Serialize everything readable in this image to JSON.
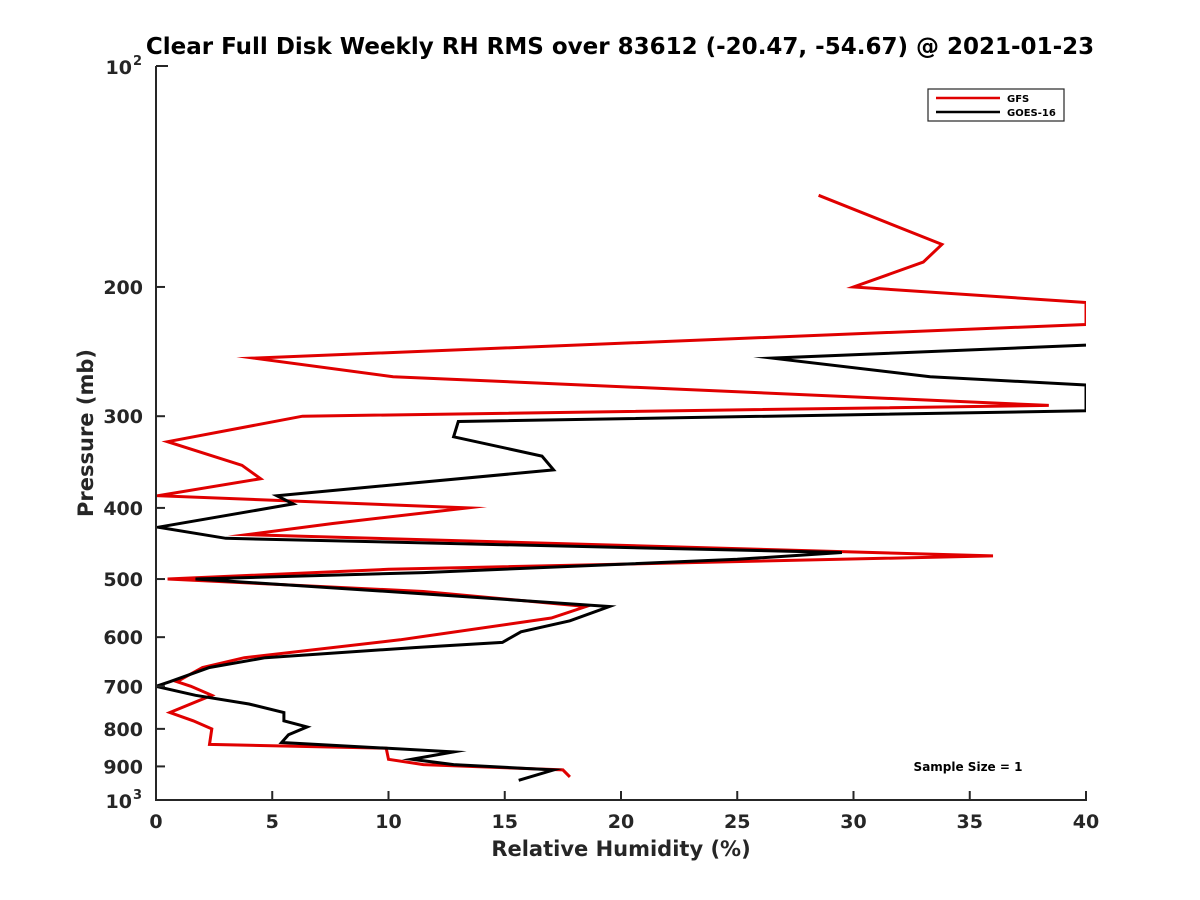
{
  "chart_data": {
    "type": "line",
    "title": "Clear Full Disk Weekly RH RMS over 83612 (-20.47, -54.67) @ 2021-01-23",
    "xlabel": "Relative Humidity (%)",
    "ylabel": "Pressure (mb)",
    "xlim": [
      0,
      40
    ],
    "ylim": [
      100,
      1000
    ],
    "y_scale": "log",
    "y_reversed": true,
    "x_ticks": [
      {
        "value": 0,
        "label": "0"
      },
      {
        "value": 5,
        "label": "5"
      },
      {
        "value": 10,
        "label": "10"
      },
      {
        "value": 15,
        "label": "15"
      },
      {
        "value": 20,
        "label": "20"
      },
      {
        "value": 25,
        "label": "25"
      },
      {
        "value": 30,
        "label": "30"
      },
      {
        "value": 35,
        "label": "35"
      },
      {
        "value": 40,
        "label": "40"
      }
    ],
    "y_ticks": [
      {
        "value": 100,
        "base": "10",
        "exp": "2"
      },
      {
        "value": 200,
        "label": "200"
      },
      {
        "value": 300,
        "label": "300"
      },
      {
        "value": 400,
        "label": "400"
      },
      {
        "value": 500,
        "label": "500"
      },
      {
        "value": 600,
        "label": "600"
      },
      {
        "value": 700,
        "label": "700"
      },
      {
        "value": 800,
        "label": "800"
      },
      {
        "value": 900,
        "label": "900"
      },
      {
        "value": 1000,
        "base": "10",
        "exp": "3"
      }
    ],
    "grid": false,
    "legend_position": "top-right",
    "annotation": "Sample Size = 1",
    "series": [
      {
        "name": "GFS",
        "color": "#e00000",
        "points": [
          {
            "x": 28.5,
            "y": 150
          },
          {
            "x": 33.8,
            "y": 175
          },
          {
            "x": 33.0,
            "y": 185
          },
          {
            "x": 30.0,
            "y": 200
          },
          {
            "x": 40.0,
            "y": 210
          },
          {
            "x": 40.0,
            "y": 225
          },
          {
            "x": 4.2,
            "y": 250
          },
          {
            "x": 10.2,
            "y": 265
          },
          {
            "x": 38.4,
            "y": 290
          },
          {
            "x": 6.3,
            "y": 300
          },
          {
            "x": 0.5,
            "y": 325
          },
          {
            "x": 3.7,
            "y": 350
          },
          {
            "x": 4.5,
            "y": 365
          },
          {
            "x": 0.1,
            "y": 385
          },
          {
            "x": 13.4,
            "y": 400
          },
          {
            "x": 7.6,
            "y": 420
          },
          {
            "x": 3.9,
            "y": 435
          },
          {
            "x": 36.0,
            "y": 465
          },
          {
            "x": 10.0,
            "y": 485
          },
          {
            "x": 0.5,
            "y": 500
          },
          {
            "x": 11.5,
            "y": 520
          },
          {
            "x": 18.5,
            "y": 545
          },
          {
            "x": 17.0,
            "y": 565
          },
          {
            "x": 10.5,
            "y": 605
          },
          {
            "x": 3.8,
            "y": 640
          },
          {
            "x": 2.0,
            "y": 660
          },
          {
            "x": 0.9,
            "y": 690
          },
          {
            "x": 1.5,
            "y": 700
          },
          {
            "x": 2.4,
            "y": 720
          },
          {
            "x": 0.6,
            "y": 760
          },
          {
            "x": 1.6,
            "y": 780
          },
          {
            "x": 2.4,
            "y": 800
          },
          {
            "x": 2.3,
            "y": 840
          },
          {
            "x": 9.9,
            "y": 850
          },
          {
            "x": 10.0,
            "y": 880
          },
          {
            "x": 11.5,
            "y": 895
          },
          {
            "x": 17.5,
            "y": 910
          },
          {
            "x": 17.8,
            "y": 930
          }
        ]
      },
      {
        "name": "GOES-16",
        "color": "#000000",
        "points": [
          {
            "x": 40.0,
            "y": 240
          },
          {
            "x": 26.5,
            "y": 250
          },
          {
            "x": 33.3,
            "y": 265
          },
          {
            "x": 40.0,
            "y": 272
          },
          {
            "x": 40.0,
            "y": 295
          },
          {
            "x": 13.0,
            "y": 305
          },
          {
            "x": 12.8,
            "y": 320
          },
          {
            "x": 16.6,
            "y": 340
          },
          {
            "x": 17.1,
            "y": 355
          },
          {
            "x": 5.2,
            "y": 385
          },
          {
            "x": 5.9,
            "y": 395
          },
          {
            "x": 0.1,
            "y": 425
          },
          {
            "x": 3.0,
            "y": 440
          },
          {
            "x": 29.5,
            "y": 460
          },
          {
            "x": 25.0,
            "y": 470
          },
          {
            "x": 11.5,
            "y": 490
          },
          {
            "x": 1.7,
            "y": 500
          },
          {
            "x": 10.0,
            "y": 520
          },
          {
            "x": 19.5,
            "y": 545
          },
          {
            "x": 17.8,
            "y": 570
          },
          {
            "x": 15.7,
            "y": 590
          },
          {
            "x": 14.9,
            "y": 610
          },
          {
            "x": 11.1,
            "y": 620
          },
          {
            "x": 4.7,
            "y": 640
          },
          {
            "x": 2.3,
            "y": 660
          },
          {
            "x": 0.6,
            "y": 690
          },
          {
            "x": 0.0,
            "y": 700
          },
          {
            "x": 1.7,
            "y": 720
          },
          {
            "x": 4.0,
            "y": 740
          },
          {
            "x": 5.5,
            "y": 760
          },
          {
            "x": 5.5,
            "y": 780
          },
          {
            "x": 6.5,
            "y": 795
          },
          {
            "x": 5.7,
            "y": 815
          },
          {
            "x": 5.4,
            "y": 835
          },
          {
            "x": 12.8,
            "y": 860
          },
          {
            "x": 11.0,
            "y": 880
          },
          {
            "x": 12.8,
            "y": 895
          },
          {
            "x": 17.1,
            "y": 910
          },
          {
            "x": 15.6,
            "y": 940
          }
        ]
      }
    ]
  }
}
